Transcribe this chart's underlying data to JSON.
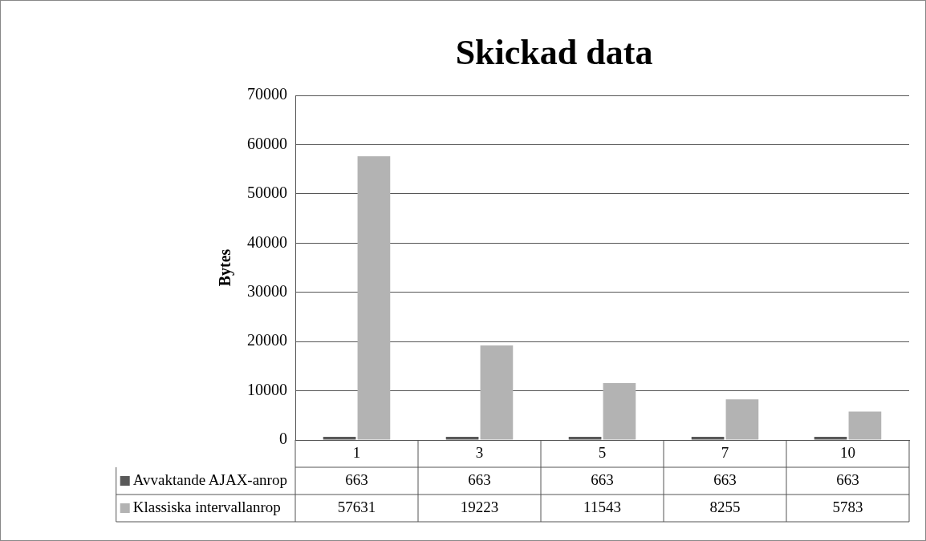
{
  "chart_data": {
    "type": "bar",
    "title": "Skickad data",
    "ylabel": "Bytes",
    "categories": [
      "1",
      "3",
      "5",
      "7",
      "10"
    ],
    "series": [
      {
        "name": "Avvaktande AJAX-anrop",
        "color": "#595959",
        "values": [
          663,
          663,
          663,
          663,
          663
        ]
      },
      {
        "name": "Klassiska intervallanrop",
        "color": "#b3b3b3",
        "values": [
          57631,
          19223,
          11543,
          8255,
          5783
        ]
      }
    ],
    "ylim": [
      0,
      70000
    ],
    "yticks": [
      0,
      10000,
      20000,
      30000,
      40000,
      50000,
      60000,
      70000
    ],
    "grid": "y",
    "legend": "bottom",
    "data_labels": true
  }
}
